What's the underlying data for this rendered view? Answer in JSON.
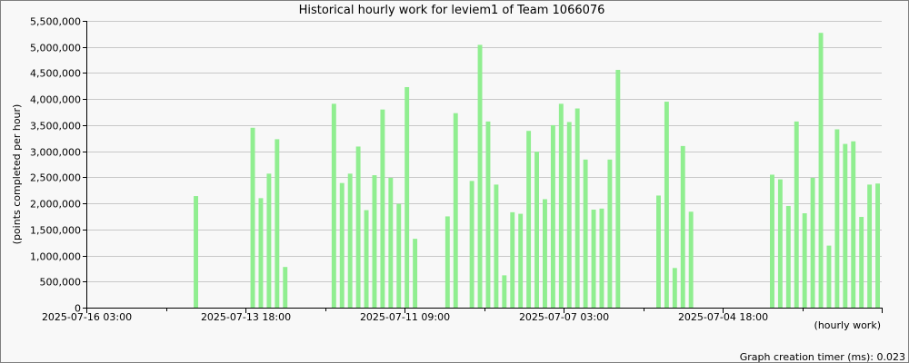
{
  "chart_data": {
    "type": "bar",
    "title": "Historical hourly work for leviem1 of Team 1066076",
    "xlabel": "(hourly work)",
    "ylabel": "(points completed per hour)",
    "ylim": [
      0,
      5500000
    ],
    "yticks": [
      0,
      500000,
      1000000,
      1500000,
      2000000,
      2500000,
      3000000,
      3500000,
      4000000,
      4500000,
      5000000,
      5500000
    ],
    "ytick_labels": [
      "0",
      "500,000",
      "1,000,000",
      "1,500,000",
      "2,000,000",
      "2,500,000",
      "3,000,000",
      "3,500,000",
      "4,000,000",
      "4,500,000",
      "5,000,000",
      "5,500,000"
    ],
    "x_tick_labels": [
      "2025-07-16 03:00",
      "2025-07-13 18:00",
      "2025-07-11 09:00",
      "2025-07-07 03:00",
      "2025-07-04 18:00"
    ],
    "grid": true,
    "bar_color": "#90ee90",
    "values": [
      0,
      0,
      0,
      0,
      0,
      0,
      0,
      0,
      0,
      0,
      0,
      0,
      0,
      2140000,
      0,
      0,
      0,
      0,
      0,
      0,
      3450000,
      2100000,
      2570000,
      3230000,
      780000,
      0,
      0,
      0,
      0,
      0,
      3910000,
      2390000,
      2570000,
      3090000,
      1870000,
      2540000,
      3800000,
      2490000,
      1990000,
      4230000,
      1320000,
      0,
      0,
      0,
      1750000,
      3730000,
      0,
      2430000,
      5040000,
      3570000,
      2360000,
      620000,
      1830000,
      1800000,
      3390000,
      2990000,
      2080000,
      3500000,
      3910000,
      3560000,
      3820000,
      2840000,
      1880000,
      1900000,
      2840000,
      4560000,
      0,
      0,
      0,
      0,
      2150000,
      3950000,
      760000,
      3100000,
      1840000,
      0,
      0,
      0,
      0,
      0,
      0,
      0,
      0,
      0,
      2550000,
      2460000,
      1950000,
      3570000,
      1810000,
      2490000,
      5270000,
      1190000,
      3420000,
      3140000,
      3190000,
      1740000,
      2360000,
      2380000
    ]
  },
  "footer": {
    "timer": "Graph creation timer (ms): 0.023"
  }
}
